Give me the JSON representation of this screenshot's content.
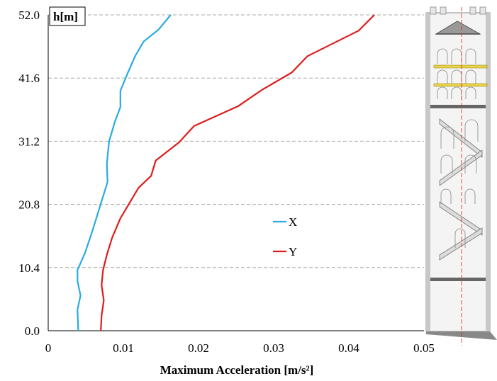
{
  "chart_data": {
    "type": "line",
    "xlabel": "Maximum Acceleration [m/s²]",
    "ylabel": "h[m]",
    "xlim": [
      0,
      0.05
    ],
    "ylim": [
      0,
      52
    ],
    "x_ticks": [
      "0",
      "0.01",
      "0.02",
      "0.03",
      "0.04",
      "0.05"
    ],
    "y_ticks": [
      "0.0",
      "10.4",
      "20.8",
      "31.2",
      "41.6",
      "52.0"
    ],
    "grid": "horizontal dashed",
    "legend_position": "center",
    "series": [
      {
        "name": "X",
        "color": "#29abe2",
        "points": [
          [
            0.004,
            0.0
          ],
          [
            0.0039,
            3.5
          ],
          [
            0.0043,
            5.8
          ],
          [
            0.0039,
            8.2
          ],
          [
            0.0039,
            10.0
          ],
          [
            0.0049,
            12.8
          ],
          [
            0.0059,
            16.5
          ],
          [
            0.0069,
            20.5
          ],
          [
            0.0079,
            24.5
          ],
          [
            0.0078,
            27.5
          ],
          [
            0.0081,
            31.2
          ],
          [
            0.0089,
            34.5
          ],
          [
            0.0096,
            36.8
          ],
          [
            0.0096,
            39.5
          ],
          [
            0.0106,
            42.5
          ],
          [
            0.0116,
            45.3
          ],
          [
            0.0127,
            47.6
          ],
          [
            0.0147,
            49.6
          ],
          [
            0.0163,
            52.0
          ]
        ]
      },
      {
        "name": "Y",
        "color": "#e01b1b",
        "points": [
          [
            0.007,
            0.0
          ],
          [
            0.0071,
            2.5
          ],
          [
            0.0074,
            5.0
          ],
          [
            0.0071,
            7.5
          ],
          [
            0.0073,
            10.0
          ],
          [
            0.0078,
            12.5
          ],
          [
            0.0085,
            15.3
          ],
          [
            0.0096,
            18.5
          ],
          [
            0.0108,
            21.0
          ],
          [
            0.012,
            23.5
          ],
          [
            0.0137,
            25.5
          ],
          [
            0.0143,
            28.0
          ],
          [
            0.0174,
            31.0
          ],
          [
            0.0194,
            33.7
          ],
          [
            0.0253,
            37.0
          ],
          [
            0.0285,
            39.7
          ],
          [
            0.0324,
            42.5
          ],
          [
            0.0345,
            45.2
          ],
          [
            0.0413,
            49.4
          ],
          [
            0.0434,
            52.0
          ]
        ]
      }
    ],
    "legend": [
      {
        "label": "X",
        "color": "#29abe2"
      },
      {
        "label": "Y",
        "color": "#e01b1b"
      }
    ]
  }
}
